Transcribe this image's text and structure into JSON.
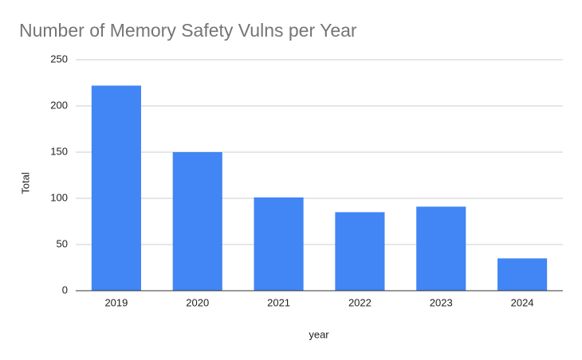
{
  "chart_data": {
    "type": "bar",
    "title": "Number of Memory Safety Vulns per Year",
    "x_label": "year",
    "y_label": "Total",
    "categories": [
      "2019",
      "2020",
      "2021",
      "2022",
      "2023",
      "2024"
    ],
    "values": [
      222,
      150,
      101,
      85,
      91,
      35
    ],
    "color": "#4285f4",
    "ylim": [
      0,
      250
    ],
    "yticks": [
      0,
      50,
      100,
      150,
      200,
      250
    ],
    "grid": true
  }
}
